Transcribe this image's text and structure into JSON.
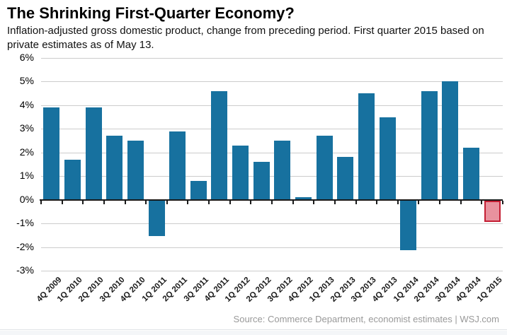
{
  "header": {
    "title": "The Shrinking First-Quarter Economy?",
    "subtitle": "Inflation-adjusted gross domestic product, change from preceding period. First quarter 2015 based on private estimates as of May 13."
  },
  "footer": {
    "source": "Source: Commerce Department, economist estimates  |  WSJ.com"
  },
  "colors": {
    "bar": "#17719f",
    "highlight_fill": "#e8929e",
    "highlight_border": "#c41f34",
    "gridline": "#cccccc",
    "zero_line": "#1a1a1a",
    "footer_text": "#999999"
  },
  "chart_data": {
    "type": "bar",
    "title": "The Shrinking First-Quarter Economy?",
    "subtitle": "Inflation-adjusted gross domestic product, change from preceding period. First quarter 2015 based on private estimates as of May 13.",
    "xlabel": "",
    "ylabel": "",
    "ylim": [
      -3,
      6
    ],
    "grid": true,
    "y_ticks": [
      "6%",
      "5%",
      "4%",
      "3%",
      "2%",
      "1%",
      "0%",
      "-1%",
      "-2%",
      "-3%"
    ],
    "y_tick_values": [
      6,
      5,
      4,
      3,
      2,
      1,
      0,
      -1,
      -2,
      -3
    ],
    "categories": [
      "4Q 2009",
      "1Q 2010",
      "2Q 2010",
      "3Q 2010",
      "4Q 2010",
      "1Q 2011",
      "2Q 2011",
      "3Q 2011",
      "4Q 2011",
      "1Q 2012",
      "2Q 2012",
      "3Q 2012",
      "4Q 2012",
      "1Q 2013",
      "2Q 2013",
      "3Q 2013",
      "4Q 2013",
      "1Q 2014",
      "2Q 2014",
      "3Q 2014",
      "4Q 2014",
      "1Q 2015"
    ],
    "values": [
      3.9,
      1.7,
      3.9,
      2.7,
      2.5,
      -1.5,
      2.9,
      0.8,
      4.6,
      2.3,
      1.6,
      2.5,
      0.1,
      2.7,
      1.8,
      4.5,
      3.5,
      -2.1,
      4.6,
      5.0,
      2.2,
      -0.9
    ],
    "highlighted_category": "1Q 2015",
    "highlight_note": "1Q 2015 shown in pink: private estimates as of May 13"
  }
}
